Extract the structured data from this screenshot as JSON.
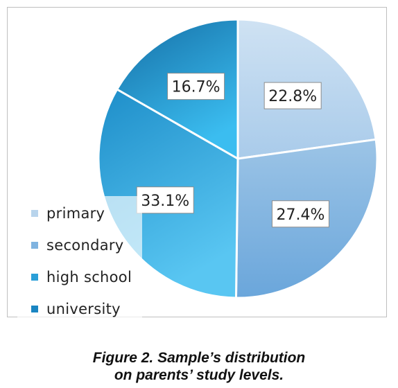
{
  "chart_data": {
    "type": "pie",
    "categories": [
      "primary",
      "secondary",
      "high school",
      "university"
    ],
    "values": [
      22.8,
      27.4,
      33.1,
      16.7
    ],
    "labels": [
      "22.8%",
      "27.4%",
      "33.1%",
      "16.7%"
    ],
    "legend_position": "left",
    "colors": [
      "#b8d4ec",
      "#7fb3e0",
      "#2a9fd8",
      "#1a85c2"
    ],
    "title": ""
  },
  "caption": {
    "line1": "Figure 2. Sample’s distribution",
    "line2": "on parents’ study levels."
  }
}
